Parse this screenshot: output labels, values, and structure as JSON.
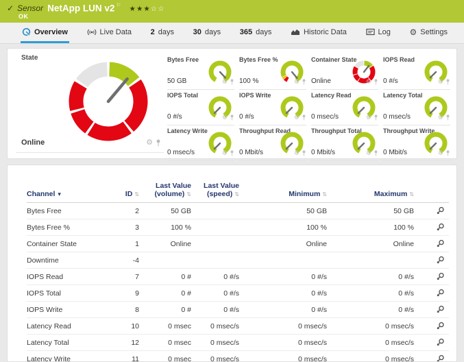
{
  "colors": {
    "ok_green": "#b2c834",
    "gauge_green": "#aec91c",
    "alarm_red": "#e30613",
    "warning_yellow": "#f0c400",
    "arc_gray": "#e4e4e4",
    "needle_gray": "#6f6f6f",
    "header_navy": "#22366d",
    "accent_blue": "#2e9bd6"
  },
  "icons": {
    "check": "✓",
    "flag": "⚐",
    "stars_filled": "★★★",
    "stars_empty": "☆☆",
    "gear": "⚙",
    "sort": "⇅",
    "dropdown": "▾"
  },
  "header": {
    "kind": "Sensor",
    "title": "NetApp LUN v2",
    "status": "OK"
  },
  "tabs": [
    {
      "strong": "",
      "label": "Overview"
    },
    {
      "strong": "",
      "label": "Live Data"
    },
    {
      "strong": "2",
      "label": "days"
    },
    {
      "strong": "30",
      "label": "days"
    },
    {
      "strong": "365",
      "label": "days"
    },
    {
      "strong": "",
      "label": "Historic Data"
    },
    {
      "strong": "",
      "label": "Log"
    },
    {
      "strong": "",
      "label": "Settings"
    }
  ],
  "state_panel": {
    "title": "State",
    "status": "Online",
    "gauge": {
      "style": "state",
      "needle_deg": 40
    }
  },
  "gauges": [
    {
      "label": "Bytes Free",
      "value": "50 GB",
      "style": "green",
      "needle_deg": 137
    },
    {
      "label": "Bytes Free %",
      "value": "100 %",
      "style": "percent",
      "needle_deg": 140
    },
    {
      "label": "Container State",
      "value": "Online",
      "style": "state",
      "needle_deg": 38
    },
    {
      "label": "IOPS Read",
      "value": "0 #/s",
      "style": "green",
      "needle_deg": 225
    },
    {
      "label": "IOPS Total",
      "value": "0 #/s",
      "style": "green",
      "needle_deg": 225
    },
    {
      "label": "IOPS Write",
      "value": "0 #/s",
      "style": "green",
      "needle_deg": 225
    },
    {
      "label": "Latency Read",
      "value": "0 msec/s",
      "style": "green",
      "needle_deg": 225
    },
    {
      "label": "Latency Total",
      "value": "0 msec/s",
      "style": "green",
      "needle_deg": 225
    },
    {
      "label": "Latency Write",
      "value": "0 msec/s",
      "style": "green",
      "needle_deg": 225
    },
    {
      "label": "Throughput Read",
      "value": "0 Mbit/s",
      "style": "green",
      "needle_deg": 225
    },
    {
      "label": "Throughput Total",
      "value": "0 Mbit/s",
      "style": "green",
      "needle_deg": 225
    },
    {
      "label": "Throughput Write",
      "value": "0 Mbit/s",
      "style": "green",
      "needle_deg": 225
    }
  ],
  "table": {
    "headers": {
      "channel": "Channel",
      "id": "ID",
      "last_volume": "Last Value (volume)",
      "last_speed": "Last Value (speed)",
      "min": "Minimum",
      "max": "Maximum"
    },
    "rows": [
      {
        "channel": "Bytes Free",
        "id": "2",
        "last_volume": "50 GB",
        "last_speed": "",
        "min": "50 GB",
        "max": "50 GB"
      },
      {
        "channel": "Bytes Free %",
        "id": "3",
        "last_volume": "100 %",
        "last_speed": "",
        "min": "100 %",
        "max": "100 %"
      },
      {
        "channel": "Container State",
        "id": "1",
        "last_volume": "Online",
        "last_speed": "",
        "min": "Online",
        "max": "Online"
      },
      {
        "channel": "Downtime",
        "id": "-4",
        "last_volume": "",
        "last_speed": "",
        "min": "",
        "max": ""
      },
      {
        "channel": "IOPS Read",
        "id": "7",
        "last_volume": "0 #",
        "last_speed": "0 #/s",
        "min": "0 #/s",
        "max": "0 #/s"
      },
      {
        "channel": "IOPS Total",
        "id": "9",
        "last_volume": "0 #",
        "last_speed": "0 #/s",
        "min": "0 #/s",
        "max": "0 #/s"
      },
      {
        "channel": "IOPS Write",
        "id": "8",
        "last_volume": "0 #",
        "last_speed": "0 #/s",
        "min": "0 #/s",
        "max": "0 #/s"
      },
      {
        "channel": "Latency Read",
        "id": "10",
        "last_volume": "0 msec",
        "last_speed": "0 msec/s",
        "min": "0 msec/s",
        "max": "0 msec/s"
      },
      {
        "channel": "Latency Total",
        "id": "12",
        "last_volume": "0 msec",
        "last_speed": "0 msec/s",
        "min": "0 msec/s",
        "max": "0 msec/s"
      },
      {
        "channel": "Latency Write",
        "id": "11",
        "last_volume": "0 msec",
        "last_speed": "0 msec/s",
        "min": "0 msec/s",
        "max": "0 msec/s"
      }
    ]
  }
}
